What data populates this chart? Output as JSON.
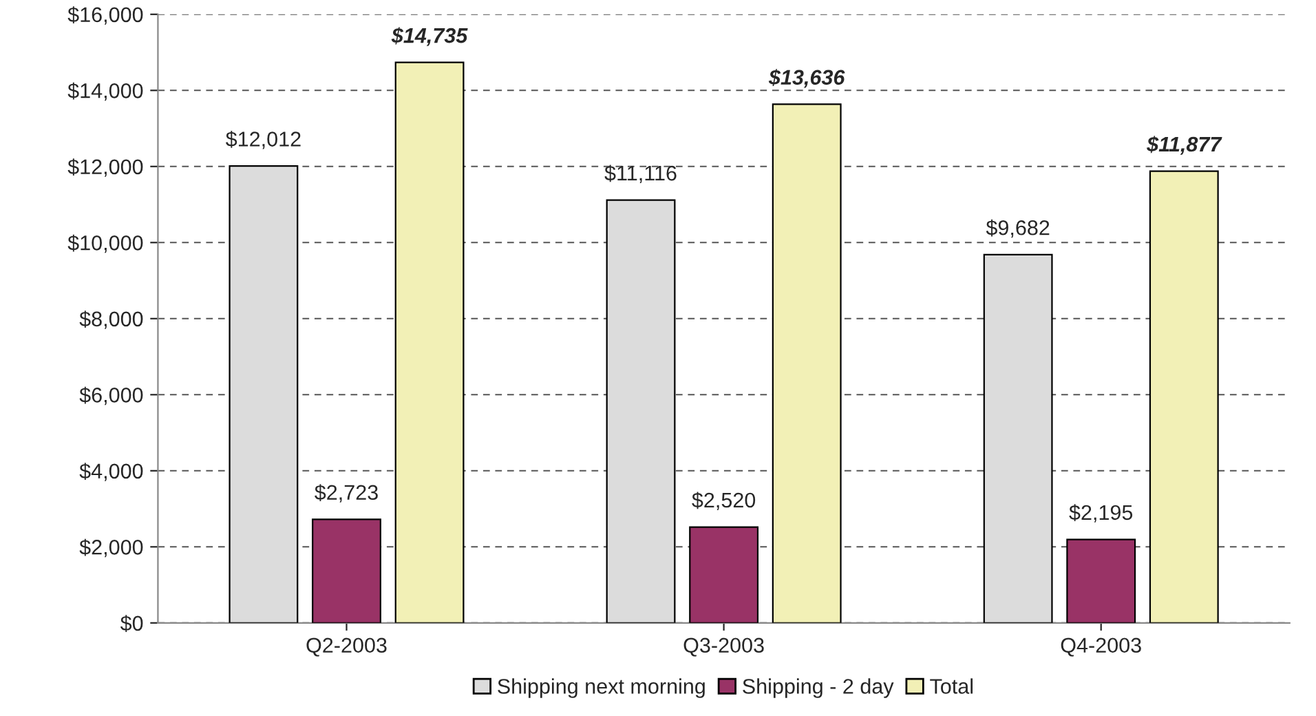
{
  "chart_data": {
    "type": "bar",
    "categories": [
      "Q2-2003",
      "Q3-2003",
      "Q4-2003"
    ],
    "series": [
      {
        "name": "Shipping next morning",
        "color": "#dcdcdc",
        "values": [
          12012,
          11116,
          9682
        ],
        "value_labels": [
          "$12,012",
          "$11,116",
          "$9,682"
        ]
      },
      {
        "name": "Shipping - 2 day",
        "color": "#993366",
        "values": [
          2723,
          2520,
          2195
        ],
        "value_labels": [
          "$2,723",
          "$2,520",
          "$2,195"
        ]
      },
      {
        "name": "Total",
        "color": "#f2f0b6",
        "values": [
          14735,
          13636,
          11877
        ],
        "value_labels": [
          "$14,735",
          "$13,636",
          "$11,877"
        ]
      }
    ],
    "ylim": [
      0,
      16000
    ],
    "yticks": [
      {
        "value": 0,
        "label": "$0"
      },
      {
        "value": 2000,
        "label": "$2,000"
      },
      {
        "value": 4000,
        "label": "$4,000"
      },
      {
        "value": 6000,
        "label": "$6,000"
      },
      {
        "value": 8000,
        "label": "$8,000"
      },
      {
        "value": 10000,
        "label": "$10,000"
      },
      {
        "value": 12000,
        "label": "$12,000"
      },
      {
        "value": 14000,
        "label": "$14,000"
      },
      {
        "value": 16000,
        "label": "$16,000"
      }
    ],
    "grid": "y",
    "legend": "bottom"
  }
}
